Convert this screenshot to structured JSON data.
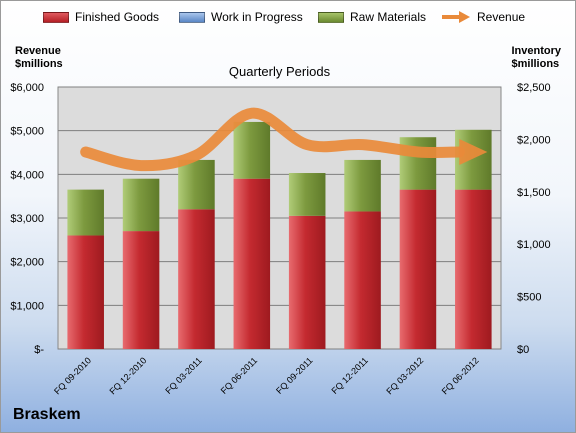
{
  "chart_data": {
    "type": "bar",
    "title": "Quarterly Periods",
    "company": "Braskem",
    "left_axis_title": [
      "Revenue",
      "$millions"
    ],
    "right_axis_title": [
      "Inventory",
      "$millions"
    ],
    "categories": [
      "FQ 09-2010",
      "FQ 12-2010",
      "FQ 03-2011",
      "FQ 06-2011",
      "FQ 09-2011",
      "FQ 12-2011",
      "FQ 03-2012",
      "FQ 06-2012"
    ],
    "stacked": true,
    "series": [
      {
        "name": "Finished Goods",
        "axis": "left",
        "values": [
          2600,
          2700,
          3200,
          3900,
          3050,
          3150,
          3650,
          3650
        ],
        "color": "#c0272d"
      },
      {
        "name": "Work in Progress",
        "axis": "left",
        "values": [
          0,
          0,
          0,
          0,
          0,
          0,
          0,
          0
        ],
        "color": "#6f9bd8"
      },
      {
        "name": "Raw Materials",
        "axis": "left",
        "values": [
          1050,
          1200,
          1130,
          1300,
          980,
          1180,
          1200,
          1370
        ],
        "color": "#76923c"
      },
      {
        "name": "Revenue",
        "type": "line",
        "axis": "right",
        "values": [
          1880,
          1750,
          1850,
          2250,
          1950,
          1950,
          1880,
          1880
        ],
        "color": "#e98a3a"
      }
    ],
    "left_axis": {
      "ylim": [
        0,
        6000
      ],
      "ticks": [
        0,
        1000,
        2000,
        3000,
        4000,
        5000,
        6000
      ],
      "tick_labels": [
        "$-",
        "$1,000",
        "$2,000",
        "$3,000",
        "$4,000",
        "$5,000",
        "$6,000"
      ]
    },
    "right_axis": {
      "ylim": [
        0,
        2500
      ],
      "ticks": [
        0,
        500,
        1000,
        1500,
        2000,
        2500
      ],
      "tick_labels": [
        "$0",
        "$500",
        "$1,000",
        "$1,500",
        "$2,000",
        "$2,500"
      ]
    },
    "grid": true,
    "legend_position": "top"
  }
}
